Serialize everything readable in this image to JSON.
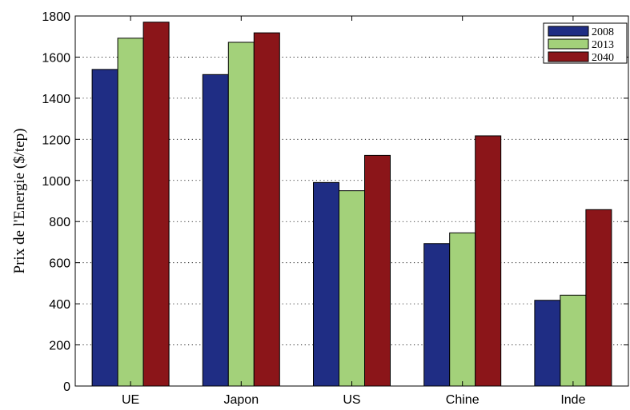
{
  "chart_data": {
    "type": "bar",
    "title": "",
    "xlabel": "",
    "ylabel": "Prix de l'Energie ($/tep)",
    "categories": [
      "UE",
      "Japon",
      "US",
      "Chine",
      "Inde"
    ],
    "series": [
      {
        "name": "2008",
        "color": "#1f2d84",
        "values": [
          1540,
          1515,
          990,
          693,
          417
        ]
      },
      {
        "name": "2013",
        "color": "#a3d17a",
        "values": [
          1692,
          1672,
          950,
          745,
          442
        ]
      },
      {
        "name": "2040",
        "color": "#8b1519",
        "values": [
          1770,
          1718,
          1122,
          1217,
          858
        ]
      }
    ],
    "ylim": [
      0,
      1800
    ],
    "yticks": [
      0,
      200,
      400,
      600,
      800,
      1000,
      1200,
      1400,
      1600,
      1800
    ],
    "grid": "horizontal dotted",
    "legend_position": "top-right"
  }
}
